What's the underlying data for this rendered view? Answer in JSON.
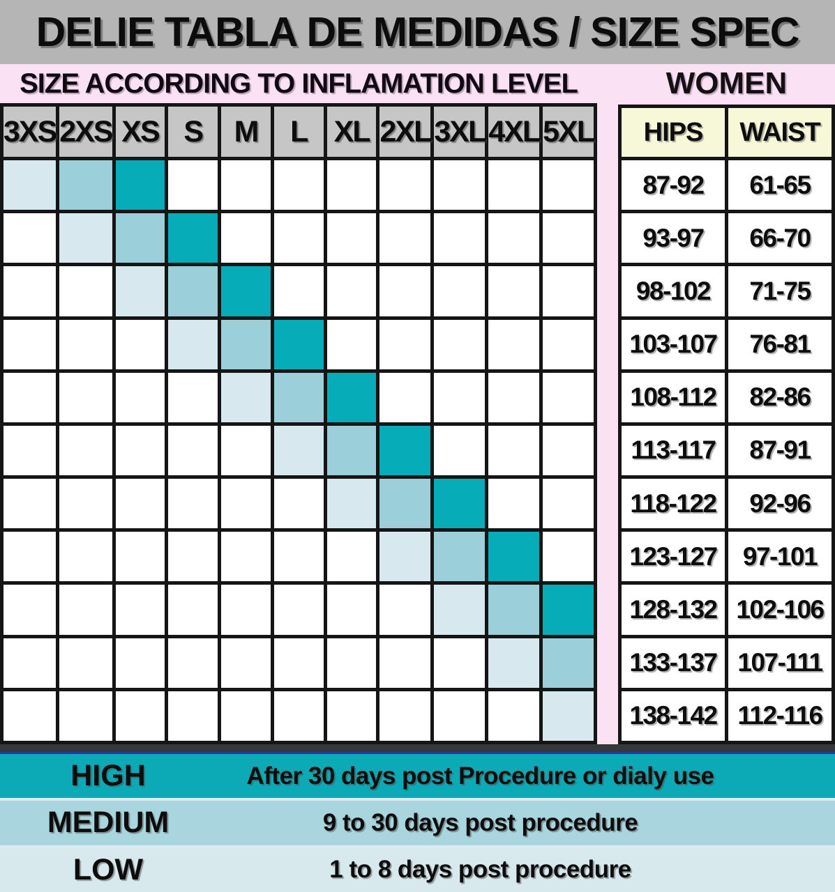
{
  "title": "DELIE TABLA DE MEDIDAS / SIZE SPEC",
  "left_heading": "SIZE ACCORDING TO INFLAMATION LEVEL",
  "right_heading": "WOMEN",
  "size_grid": {
    "columns": [
      "3XS",
      "2XS",
      "XS",
      "S",
      "M",
      "L",
      "XL",
      "2XL",
      "3XL",
      "4XL",
      "5XL"
    ],
    "row_count": 11,
    "shaded_rows": [
      {
        "low": 0,
        "medium": 1,
        "high": 2
      },
      {
        "low": 1,
        "medium": 2,
        "high": 3
      },
      {
        "low": 2,
        "medium": 3,
        "high": 4
      },
      {
        "low": 3,
        "medium": 4,
        "high": 5
      },
      {
        "low": 4,
        "medium": 5,
        "high": 6
      },
      {
        "low": 5,
        "medium": 6,
        "high": 7
      },
      {
        "low": 6,
        "medium": 7,
        "high": 8
      },
      {
        "low": 7,
        "medium": 8,
        "high": 9
      },
      {
        "low": 8,
        "medium": 9,
        "high": 10
      },
      {
        "low": 9,
        "medium": 10,
        "high": null
      },
      {
        "low": 10,
        "medium": null,
        "high": null
      }
    ]
  },
  "measurements": {
    "headers": [
      "HIPS",
      "WAIST"
    ],
    "rows": [
      [
        "87-92",
        "61-65"
      ],
      [
        "93-97",
        "66-70"
      ],
      [
        "98-102",
        "71-75"
      ],
      [
        "103-107",
        "76-81"
      ],
      [
        "108-112",
        "82-86"
      ],
      [
        "113-117",
        "87-91"
      ],
      [
        "118-122",
        "92-96"
      ],
      [
        "123-127",
        "97-101"
      ],
      [
        "128-132",
        "102-106"
      ],
      [
        "133-137",
        "107-111"
      ],
      [
        "138-142",
        "112-116"
      ]
    ]
  },
  "legend": {
    "rows": [
      {
        "level": "high",
        "label": "HIGH",
        "description": "After 30 days post Procedure or dialy use",
        "color": "#0caab6"
      },
      {
        "level": "medium",
        "label": "MEDIUM",
        "description": "9 to 30 days post procedure",
        "color": "#a9d5df"
      },
      {
        "level": "low",
        "label": "LOW",
        "description": "1 to 8 days post procedure",
        "color": "#d8e9ed"
      }
    ]
  },
  "colors": {
    "page_bg": "#fae2f4",
    "title_bar_bg": "#b5b5b5",
    "grid_header_bg": "#c6c6c6",
    "grid_line": "#151515",
    "cell_low": "#d7e9ef",
    "cell_medium": "#9bcfda",
    "cell_high": "#06adb9",
    "measure_header_bg": "#f7f8d8",
    "separator_dark": "#35383a",
    "separator_navy": "#26399b"
  }
}
